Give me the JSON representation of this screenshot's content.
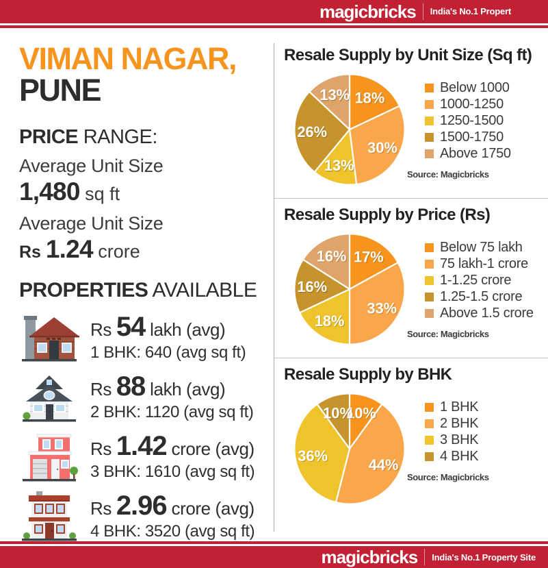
{
  "brand": {
    "logo": "magicbricks",
    "tagline_top": "India's No.1 Propert",
    "tagline_bottom": "India's No.1 Property Site",
    "bar_color": "#C22133"
  },
  "location": {
    "title_line1": "VIMAN NAGAR,",
    "title_line2": "PUNE",
    "price_range_bold": "PRICE",
    "price_range_rest": " RANGE:",
    "avg_size_label": "Average Unit Size",
    "avg_size_value": "1,480",
    "avg_size_unit": " sq ft",
    "avg_price_label": "Average Unit Size",
    "avg_price_currency": "Rs ",
    "avg_price_value": "1.24",
    "avg_price_unit": " crore"
  },
  "properties": {
    "heading_bold": "PROPERTIES",
    "heading_rest": " AVAILABLE",
    "items": [
      {
        "icon": "house-1bhk-icon",
        "currency": "Rs ",
        "price": "54",
        "unit": " lakh (avg)",
        "detail": "1 BHK: 640 (avg sq ft)"
      },
      {
        "icon": "house-2bhk-icon",
        "currency": "Rs ",
        "price": "88",
        "unit": " lakh (avg)",
        "detail": "2 BHK: 1120 (avg sq ft)"
      },
      {
        "icon": "house-3bhk-icon",
        "currency": "Rs ",
        "price": "1.42",
        "unit": " crore (avg)",
        "detail": "3 BHK: 1610 (avg sq ft)"
      },
      {
        "icon": "house-4bhk-icon",
        "currency": "Rs ",
        "price": "2.96",
        "unit": " crore (avg)",
        "detail": "4 BHK: 3520 (avg sq ft)"
      }
    ]
  },
  "chart_data": [
    {
      "type": "pie",
      "title": "Resale Supply by Unit Size (Sq ft)",
      "labels": [
        "Below 1000",
        "1000-1250",
        "1250-1500",
        "1500-1750",
        "Above 1750"
      ],
      "values": [
        18,
        30,
        13,
        26,
        13
      ],
      "value_suffix": "%",
      "colors": [
        "#F7941E",
        "#FAA74B",
        "#EFC32B",
        "#C6932C",
        "#DFA469"
      ],
      "start_angle_deg": 0,
      "direction": "clockwise",
      "legend_position": "right",
      "source": "Source: Magicbricks"
    },
    {
      "type": "pie",
      "title": "Resale Supply by Price (Rs)",
      "labels": [
        "Below 75 lakh",
        "75 lakh-1 crore",
        "1-1.25 crore",
        "1.25-1.5 crore",
        "Above 1.5 crore"
      ],
      "values": [
        17,
        33,
        18,
        16,
        16
      ],
      "value_suffix": "%",
      "colors": [
        "#F7941E",
        "#FAA74B",
        "#EFC32B",
        "#C6932C",
        "#DFA469"
      ],
      "start_angle_deg": 0,
      "direction": "clockwise",
      "legend_position": "right",
      "source": "Source: Magicbricks"
    },
    {
      "type": "pie",
      "title": "Resale Supply by BHK",
      "labels": [
        "1 BHK",
        "2 BHK",
        "3 BHK",
        "4 BHK"
      ],
      "values": [
        10,
        44,
        36,
        10
      ],
      "value_suffix": "%",
      "colors": [
        "#F7941E",
        "#FAA74B",
        "#EFC32B",
        "#C6932C"
      ],
      "start_angle_deg": 0,
      "direction": "clockwise",
      "legend_position": "right",
      "source": "Source: Magicbricks"
    }
  ]
}
